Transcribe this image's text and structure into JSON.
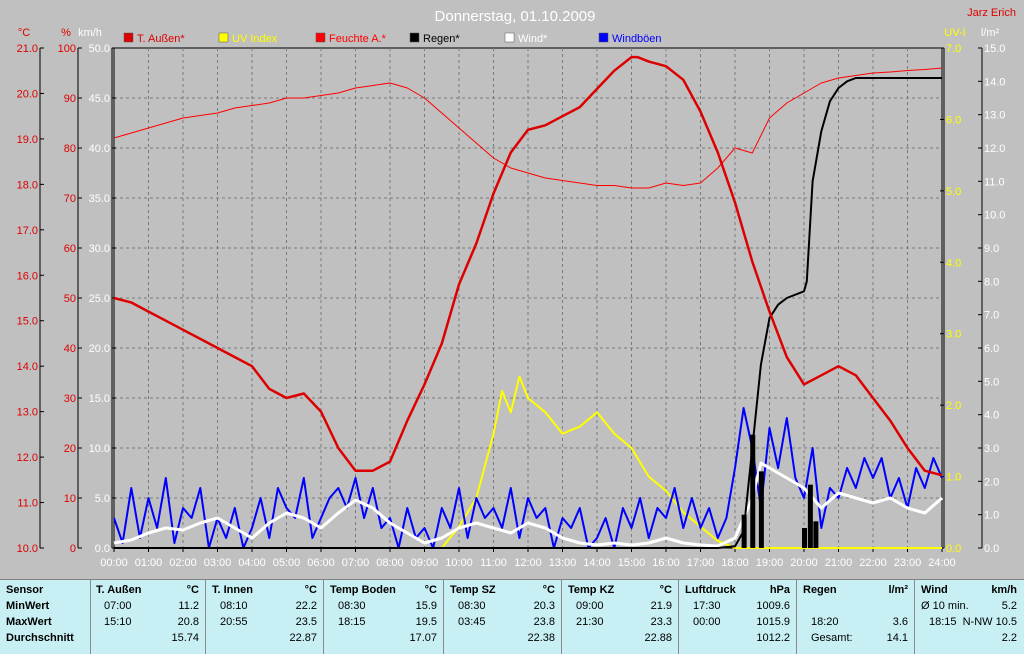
{
  "title": "Donnerstag, 01.10.2009",
  "author": "Jarz Erich",
  "colors": {
    "temp": "#dd0000",
    "uv": "#ffff00",
    "humidity": "#ff0000",
    "rain": "#000000",
    "wind": "#ffffff",
    "gust": "#0000ff",
    "background": "#c0c0c0",
    "grid": "#7a7a7a",
    "stats_bg": "#c8f0f4"
  },
  "chart_data": {
    "type": "line",
    "x_unit": "time of day (hours)",
    "x_ticks": [
      "00:00",
      "01:00",
      "02:00",
      "03:00",
      "04:00",
      "05:00",
      "06:00",
      "07:00",
      "08:00",
      "09:00",
      "10:00",
      "11:00",
      "12:00",
      "13:00",
      "14:00",
      "15:00",
      "16:00",
      "17:00",
      "18:00",
      "19:00",
      "20:00",
      "21:00",
      "22:00",
      "23:00",
      "24:00"
    ],
    "xlim": [
      0,
      24
    ],
    "axes": {
      "temp": {
        "label": "°C",
        "ylim": [
          10,
          21
        ],
        "ticks": [
          "10.0",
          "11.0",
          "12.0",
          "13.0",
          "14.0",
          "15.0",
          "16.0",
          "17.0",
          "18.0",
          "19.0",
          "20.0",
          "21.0"
        ]
      },
      "humidity": {
        "label": "%",
        "ylim": [
          0,
          100
        ],
        "ticks": [
          "0",
          "10",
          "20",
          "30",
          "40",
          "50",
          "60",
          "70",
          "80",
          "90",
          "100"
        ]
      },
      "wind": {
        "label": "km/h",
        "ylim": [
          0,
          50
        ],
        "ticks": [
          "0.0",
          "5.0",
          "10.0",
          "15.0",
          "20.0",
          "25.0",
          "30.0",
          "35.0",
          "40.0",
          "45.0",
          "50.0"
        ]
      },
      "uv": {
        "label": "UV-I",
        "ylim": [
          0,
          7
        ],
        "ticks": [
          "0.0",
          "1.0",
          "2.0",
          "3.0",
          "4.0",
          "5.0",
          "6.0",
          "7.0"
        ]
      },
      "rain": {
        "label": "l/m²",
        "ylim": [
          0,
          15
        ],
        "ticks": [
          "0.0",
          "1.0",
          "2.0",
          "3.0",
          "4.0",
          "5.0",
          "6.0",
          "7.0",
          "8.0",
          "9.0",
          "10.0",
          "11.0",
          "12.0",
          "13.0",
          "14.0",
          "15.0"
        ]
      }
    },
    "legend_placement": "top",
    "grid": true,
    "series": [
      {
        "name": "T. Außen*",
        "key": "temp",
        "x": [
          0,
          0.5,
          1,
          1.5,
          2,
          2.5,
          3,
          3.5,
          4,
          4.5,
          5,
          5.5,
          6,
          6.5,
          7,
          7.5,
          8,
          8.5,
          9,
          9.5,
          10,
          10.5,
          11,
          11.5,
          12,
          12.5,
          13,
          13.5,
          14,
          14.5,
          15,
          15.17,
          15.5,
          16,
          16.5,
          17,
          17.5,
          18,
          18.5,
          19,
          19.5,
          20,
          20.5,
          21,
          21.5,
          22,
          22.5,
          23,
          23.5,
          24
        ],
        "values": [
          15.5,
          15.4,
          15.2,
          15.0,
          14.8,
          14.6,
          14.4,
          14.2,
          14.0,
          13.5,
          13.3,
          13.4,
          13.0,
          12.2,
          11.7,
          11.7,
          11.9,
          12.8,
          13.6,
          14.5,
          15.8,
          16.7,
          17.8,
          18.7,
          19.2,
          19.3,
          19.5,
          19.7,
          20.1,
          20.5,
          20.8,
          20.8,
          20.7,
          20.6,
          20.3,
          19.6,
          18.7,
          17.6,
          16.3,
          15.2,
          14.2,
          13.6,
          13.8,
          14.0,
          13.8,
          13.3,
          12.8,
          12.2,
          11.7,
          11.6
        ]
      },
      {
        "name": "UV Index",
        "key": "uv",
        "x": [
          0,
          9.5,
          10,
          10.5,
          11,
          11.25,
          11.5,
          11.75,
          12,
          12.25,
          12.5,
          13,
          13.5,
          14,
          14.5,
          15,
          15.5,
          16,
          16.5,
          17,
          17.5,
          18,
          24
        ],
        "values": [
          0,
          0,
          0.3,
          0.7,
          1.6,
          2.2,
          1.9,
          2.4,
          2.1,
          2.0,
          1.9,
          1.6,
          1.7,
          1.9,
          1.6,
          1.4,
          1.0,
          0.8,
          0.5,
          0.3,
          0.1,
          0,
          0
        ]
      },
      {
        "name": "Feuchte A.*",
        "key": "humidity",
        "x": [
          0,
          0.5,
          1,
          1.5,
          2,
          2.5,
          3,
          3.5,
          4,
          4.5,
          5,
          5.5,
          6,
          6.5,
          7,
          7.5,
          8,
          8.5,
          9,
          9.5,
          10,
          10.5,
          11,
          11.5,
          12,
          12.5,
          13,
          13.5,
          14,
          14.5,
          15,
          15.5,
          16,
          16.5,
          17,
          17.5,
          18,
          18.5,
          19,
          19.5,
          20,
          20.5,
          21,
          21.5,
          22,
          22.5,
          23,
          23.5,
          24
        ],
        "values": [
          82,
          83,
          84,
          85,
          86,
          86.5,
          87,
          88,
          88.5,
          89,
          90,
          90,
          90.5,
          91,
          92,
          92.5,
          93,
          92,
          90,
          87,
          84,
          81,
          78,
          76,
          75,
          74,
          73.5,
          73,
          72.5,
          72.5,
          72,
          72,
          73,
          72.5,
          73,
          76,
          80,
          79,
          86,
          89,
          91,
          93,
          94,
          94.5,
          95,
          95.2,
          95.5,
          95.7,
          96
        ]
      },
      {
        "name": "Regen*",
        "key": "rain",
        "x": [
          0,
          17.5,
          18,
          18.25,
          18.5,
          18.75,
          19,
          19.25,
          19.5,
          20,
          20.08,
          20.25,
          20.5,
          20.75,
          21,
          21.25,
          21.5,
          22,
          23,
          24
        ],
        "values": [
          0,
          0,
          0.05,
          0.5,
          3.0,
          5.5,
          6.9,
          7.3,
          7.5,
          7.7,
          8.0,
          11.0,
          12.5,
          13.4,
          13.8,
          14.0,
          14.1,
          14.1,
          14.1,
          14.1
        ]
      },
      {
        "name": "Wind*",
        "key": "wind",
        "x": [
          0,
          0.5,
          1,
          1.5,
          2,
          2.5,
          3,
          3.5,
          4,
          4.5,
          5,
          5.5,
          6,
          6.5,
          7,
          7.5,
          8,
          8.5,
          9,
          9.5,
          10,
          10.5,
          11,
          11.5,
          12,
          12.5,
          13,
          13.5,
          14,
          14.5,
          15,
          15.5,
          16,
          16.5,
          17,
          17.5,
          18,
          18.5,
          18.75,
          19,
          19.5,
          20,
          20.5,
          21,
          21.5,
          22,
          22.5,
          23,
          23.5,
          24
        ],
        "values": [
          0.5,
          0.8,
          1.5,
          2.0,
          1.8,
          2.5,
          3.0,
          2.0,
          1.0,
          2.5,
          3.5,
          3.0,
          2.0,
          3.5,
          4.8,
          4.0,
          2.5,
          1.5,
          0.5,
          1.0,
          2.0,
          2.5,
          2.0,
          1.5,
          2.5,
          2.0,
          1.0,
          0.5,
          0.3,
          0.5,
          0.3,
          0.5,
          1.0,
          0.5,
          0.3,
          0.2,
          1.0,
          5.0,
          8.5,
          8.0,
          7.0,
          6.0,
          4.0,
          5.5,
          5.0,
          4.5,
          5.0,
          4.0,
          3.5,
          5.0
        ]
      },
      {
        "name": "Windböen",
        "key": "wind",
        "x": [
          0,
          0.25,
          0.5,
          0.75,
          1,
          1.25,
          1.5,
          1.75,
          2,
          2.25,
          2.5,
          2.75,
          3,
          3.25,
          3.5,
          3.75,
          4,
          4.25,
          4.5,
          4.75,
          5,
          5.25,
          5.5,
          5.75,
          6,
          6.25,
          6.5,
          6.75,
          7,
          7.25,
          7.5,
          7.75,
          8,
          8.25,
          8.5,
          8.75,
          9,
          9.25,
          9.5,
          9.75,
          10,
          10.25,
          10.5,
          10.75,
          11,
          11.25,
          11.5,
          11.75,
          12,
          12.25,
          12.5,
          12.75,
          13,
          13.25,
          13.5,
          13.75,
          14,
          14.25,
          14.5,
          14.75,
          15,
          15.25,
          15.5,
          15.75,
          16,
          16.25,
          16.5,
          16.75,
          17,
          17.25,
          17.5,
          17.75,
          18,
          18.25,
          18.5,
          18.75,
          19,
          19.25,
          19.5,
          19.75,
          20,
          20.25,
          20.5,
          20.75,
          21,
          21.25,
          21.5,
          21.75,
          22,
          22.25,
          22.5,
          22.75,
          23,
          23.25,
          23.5,
          23.75,
          24
        ],
        "values": [
          3,
          0.5,
          6,
          1,
          5,
          2,
          7,
          0.5,
          4,
          3,
          6,
          0,
          3,
          1,
          4,
          0,
          2,
          5,
          1,
          6,
          4,
          3,
          7,
          1,
          3,
          5,
          6,
          4,
          7,
          3,
          6,
          2,
          3,
          0,
          4,
          1,
          2,
          0,
          4,
          2,
          6,
          1,
          5,
          3,
          4,
          2,
          6,
          1,
          5,
          3,
          4,
          0,
          3,
          2,
          4,
          0,
          1,
          3,
          0,
          4,
          2,
          5,
          1,
          4,
          3,
          6,
          2,
          5,
          2,
          4,
          1,
          3,
          8,
          14,
          10,
          4,
          12,
          8,
          13,
          7,
          5,
          10,
          2,
          6,
          5,
          8,
          6,
          9,
          7,
          9,
          5,
          7,
          4,
          8,
          6,
          9,
          7
        ]
      }
    ]
  },
  "stats": {
    "row_labels": [
      "Sensor",
      "MinWert",
      "MaxWert",
      "Durchschnitt"
    ],
    "columns": [
      {
        "name": "T. Außen",
        "unit": "°C",
        "min_time": "07:00",
        "min": "11.2",
        "max_time": "15:10",
        "max": "20.8",
        "avg": "15.74"
      },
      {
        "name": "T. Innen",
        "unit": "°C",
        "min_time": "08:10",
        "min": "22.2",
        "max_time": "20:55",
        "max": "23.5",
        "avg": "22.87"
      },
      {
        "name": "Temp Boden",
        "unit": "°C",
        "min_time": "08:30",
        "min": "15.9",
        "max_time": "18:15",
        "max": "19.5",
        "avg": "17.07"
      },
      {
        "name": "Temp SZ",
        "unit": "°C",
        "min_time": "08:30",
        "min": "20.3",
        "max_time": "03:45",
        "max": "23.8",
        "avg": "22.38"
      },
      {
        "name": "Temp KZ",
        "unit": "°C",
        "min_time": "09:00",
        "min": "21.9",
        "max_time": "21:30",
        "max": "23.3",
        "avg": "22.88"
      },
      {
        "name": "Luftdruck",
        "unit": "hPa",
        "min_time": "17:30",
        "min": "1009.6",
        "max_time": "00:00",
        "max": "1015.9",
        "avg": "1012.2"
      },
      {
        "name": "Regen",
        "unit": "l/m²",
        "min_time": "",
        "min": "",
        "max_time": "18:20",
        "max": "3.6",
        "avg_label": "Gesamt:",
        "avg": "14.1"
      },
      {
        "name": "Wind",
        "unit": "km/h",
        "min_time": "Ø 10 min.",
        "min": "5.2",
        "max_time": "18:15",
        "max": "N-NW 10.5",
        "avg": "2.2"
      }
    ]
  }
}
